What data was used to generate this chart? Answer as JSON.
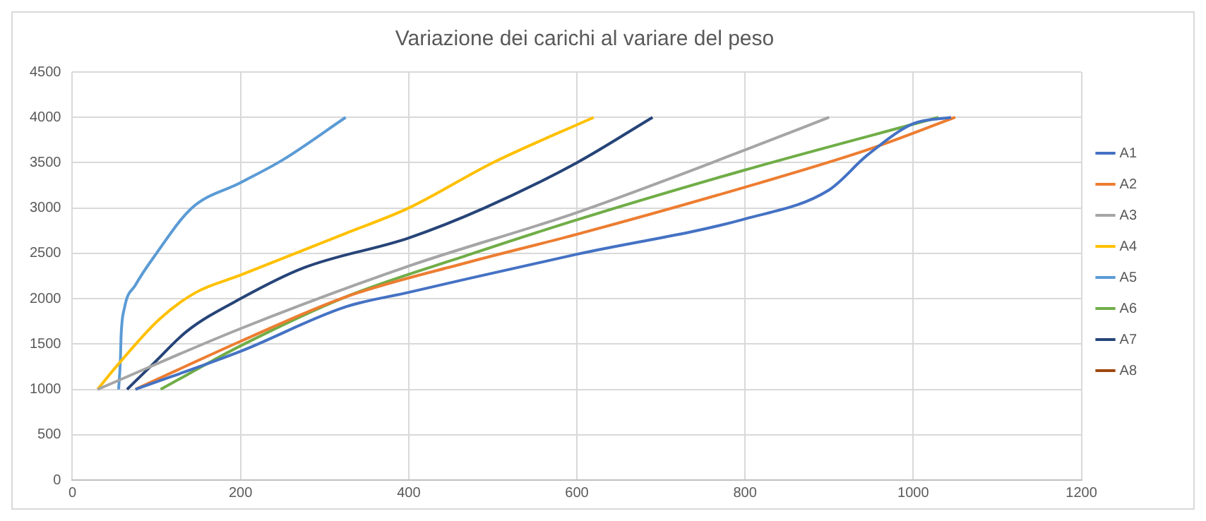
{
  "chart_data": {
    "type": "line",
    "title": "Variazione dei carichi al variare del peso",
    "xlim": [
      0,
      1200
    ],
    "xticks": [
      0,
      200,
      400,
      600,
      800,
      1000,
      1200
    ],
    "ylim": [
      0,
      4500
    ],
    "yticks": [
      0,
      500,
      1000,
      1500,
      2000,
      2500,
      3000,
      3500,
      4000,
      4500
    ],
    "grid": true,
    "legend": "right",
    "marker": "none",
    "line_style": "solid",
    "series": [
      {
        "name": "A1",
        "color": "#4472c4",
        "x": [
          75,
          200,
          325,
          400,
          470,
          600,
          800,
          900,
          945,
          1000,
          1045
        ],
        "values": [
          1000,
          1420,
          1910,
          2070,
          2220,
          2490,
          2880,
          3200,
          3580,
          3930,
          4000
        ]
      },
      {
        "name": "A2",
        "color": "#ed7d31",
        "x": [
          75,
          200,
          325,
          470,
          600,
          800,
          945,
          1050
        ],
        "values": [
          1000,
          1530,
          2020,
          2400,
          2710,
          3230,
          3640,
          4000
        ]
      },
      {
        "name": "A3",
        "color": "#a5a5a5",
        "x": [
          30,
          200,
          400,
          600,
          800,
          900
        ],
        "values": [
          1000,
          1670,
          2360,
          2950,
          3640,
          4000
        ]
      },
      {
        "name": "A4",
        "color": "#ffc000",
        "x": [
          30,
          53,
          103,
          147,
          200,
          325,
          400,
          500,
          620
        ],
        "values": [
          1000,
          1260,
          1770,
          2070,
          2260,
          2720,
          3000,
          3500,
          4000
        ]
      },
      {
        "name": "A5",
        "color": "#5b9bd5",
        "x": [
          55,
          57,
          58,
          62,
          75,
          100,
          142,
          200,
          250,
          325
        ],
        "values": [
          1000,
          1300,
          1600,
          1900,
          2150,
          2500,
          3000,
          3280,
          3530,
          4000
        ]
      },
      {
        "name": "A6",
        "color": "#70ad47",
        "x": [
          105,
          200,
          325,
          470,
          600,
          800,
          1030
        ],
        "values": [
          1000,
          1480,
          2020,
          2480,
          2870,
          3420,
          4000
        ]
      },
      {
        "name": "A7",
        "color": "#264478",
        "x": [
          65,
          97,
          136,
          200,
          275,
          400,
          490,
          600,
          690
        ],
        "values": [
          1000,
          1290,
          1640,
          2000,
          2340,
          2670,
          3000,
          3500,
          4000
        ]
      },
      {
        "name": "A8",
        "color": "#9e480e"
      }
    ]
  }
}
